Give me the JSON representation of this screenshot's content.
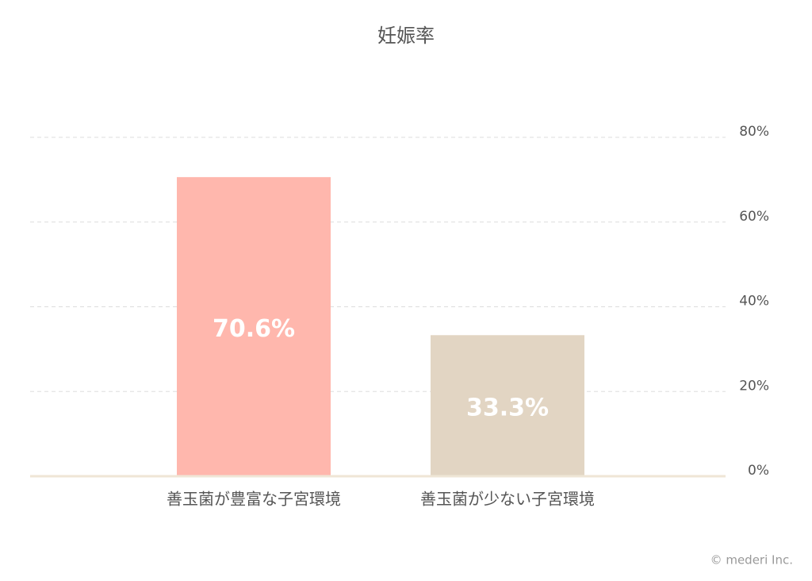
{
  "chart_data": {
    "type": "bar",
    "title": "妊娠率",
    "categories": [
      "善玉菌が豊富な子宮環境",
      "善玉菌が少ない子宮環境"
    ],
    "values": [
      70.6,
      33.3
    ],
    "value_labels": [
      "70.6%",
      "33.3%"
    ],
    "colors": [
      "#ffb7ad",
      "#e2d5c3"
    ],
    "ylim": [
      0,
      80
    ],
    "yticks": [
      {
        "value": 0,
        "label": "0%"
      },
      {
        "value": 20,
        "label": "20%"
      },
      {
        "value": 40,
        "label": "40%"
      },
      {
        "value": 60,
        "label": "60%"
      },
      {
        "value": 80,
        "label": "80%"
      }
    ],
    "grid": true,
    "credit": "© mederi Inc."
  }
}
